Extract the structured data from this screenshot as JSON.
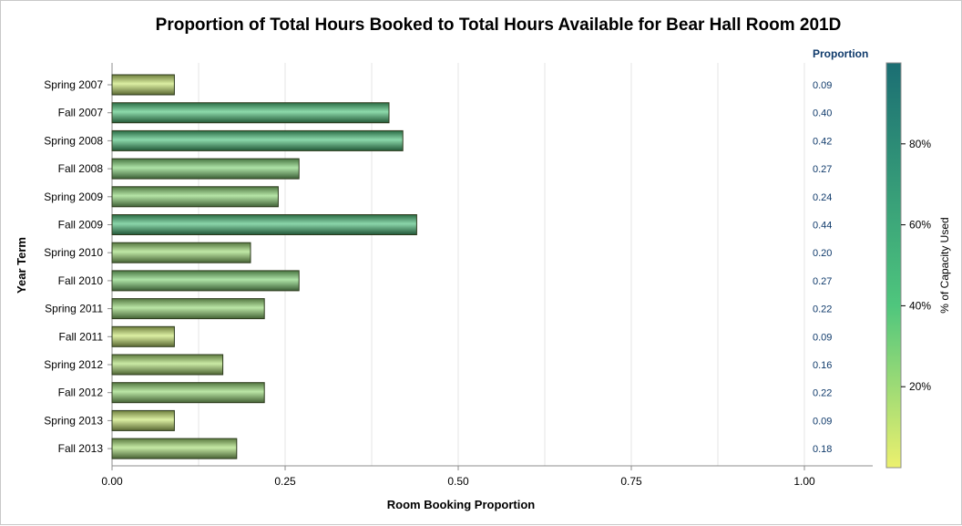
{
  "chart_data": {
    "type": "bar",
    "orientation": "horizontal",
    "title": "Proportion of Total Hours Booked to Total Hours Available for Bear Hall Room 201D",
    "xlabel": "Room Booking Proportion",
    "ylabel": "Year Term",
    "xlim": [
      0,
      1.1
    ],
    "xticks": [
      "0.00",
      "0.25",
      "0.50",
      "0.75",
      "1.00"
    ],
    "xtick_values": [
      0,
      0.25,
      0.5,
      0.75,
      1.0
    ],
    "minor_grid_values": [
      0.125,
      0.375,
      0.625,
      0.875
    ],
    "grid": true,
    "categories": [
      "Spring 2007",
      "Fall 2007",
      "Spring 2008",
      "Fall 2008",
      "Spring 2009",
      "Fall 2009",
      "Spring 2010",
      "Fall 2010",
      "Spring 2011",
      "Fall 2011",
      "Spring 2012",
      "Fall 2012",
      "Spring 2013",
      "Fall 2013"
    ],
    "values": [
      0.09,
      0.4,
      0.42,
      0.27,
      0.24,
      0.44,
      0.2,
      0.27,
      0.22,
      0.09,
      0.16,
      0.22,
      0.09,
      0.18
    ],
    "value_labels": [
      "0.09",
      "0.40",
      "0.42",
      "0.27",
      "0.24",
      "0.44",
      "0.20",
      "0.27",
      "0.22",
      "0.09",
      "0.16",
      "0.22",
      "0.09",
      "0.18"
    ],
    "value_column_header": "Proportion",
    "color_response": {
      "label": "% of Capacity Used",
      "range": [
        0,
        100
      ],
      "ticks": [
        "20%",
        "40%",
        "60%",
        "80%"
      ],
      "tick_values": [
        20,
        40,
        60,
        80
      ],
      "colors": [
        "#ecf06e",
        "#4fc67d",
        "#1b6e73"
      ]
    },
    "colors": {
      "bar_outline": "#2c3a1c",
      "value_label": "#0f3a6b",
      "axis": "#8c8c8c",
      "grid": "#e6e6e6",
      "text": "#000000"
    }
  }
}
